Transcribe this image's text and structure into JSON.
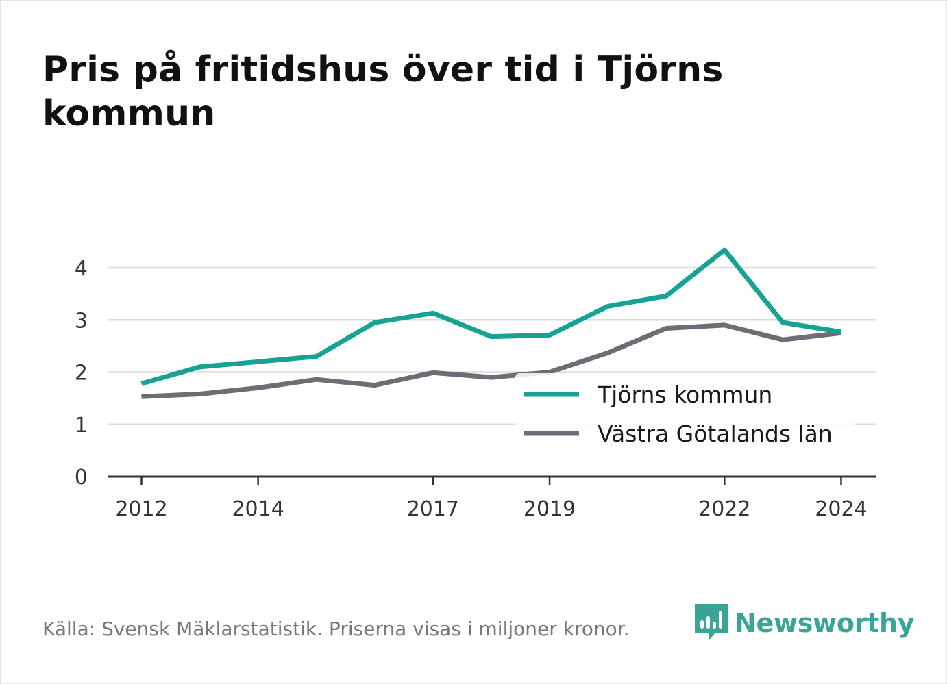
{
  "title": "Pris på fritidshus över tid i Tjörns kommun",
  "footer": {
    "source": "Källa: Svensk Mäklarstatistik. Priserna visas i miljoner kronor."
  },
  "brand": {
    "name": "Newsworthy",
    "icon": "bar-chart-speech-bubble-icon",
    "color": "#3aa597"
  },
  "chart_data": {
    "type": "line",
    "title": "Pris på fritidshus över tid i Tjörns kommun",
    "xlabel": "",
    "ylabel": "",
    "x": [
      2012,
      2013,
      2014,
      2015,
      2016,
      2017,
      2018,
      2019,
      2020,
      2021,
      2022,
      2023,
      2024
    ],
    "x_ticks": [
      "2012",
      "2014",
      "2017",
      "2019",
      "2022",
      "2024"
    ],
    "y_ticks": [
      "0",
      "1",
      "2",
      "3",
      "4"
    ],
    "xlim": [
      2011.7,
      2024.3
    ],
    "ylim": [
      0,
      4.5
    ],
    "grid": true,
    "legend_position": "lower-right",
    "series": [
      {
        "name": "Tjörns kommun",
        "color": "#16a394",
        "values": [
          1.78,
          2.1,
          2.2,
          2.3,
          2.95,
          3.13,
          2.68,
          2.71,
          3.26,
          3.46,
          4.34,
          2.95,
          2.77
        ]
      },
      {
        "name": "Västra Götalands län",
        "color": "#6e6d75",
        "values": [
          1.53,
          1.58,
          1.7,
          1.86,
          1.75,
          1.99,
          1.9,
          2.0,
          2.37,
          2.84,
          2.9,
          2.62,
          2.75
        ]
      }
    ]
  }
}
